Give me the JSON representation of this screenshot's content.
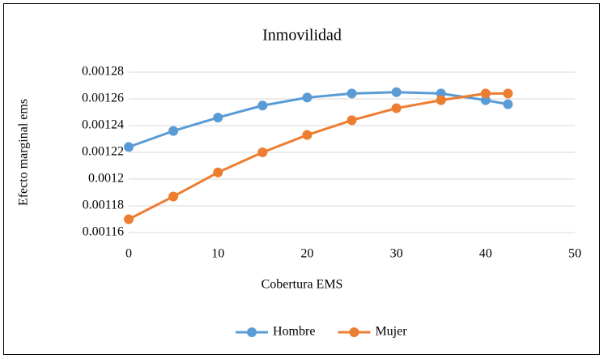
{
  "chart_data": {
    "type": "line",
    "title": "Inmovilidad",
    "x_label": "Cobertura EMS",
    "y_label": "Efecto marginal ems",
    "x": [
      0,
      5,
      10,
      15,
      20,
      25,
      30,
      35,
      40,
      42.5
    ],
    "series": [
      {
        "name": "Hombre",
        "color": "#5b9bd5",
        "values": [
          0.001224,
          0.001236,
          0.001246,
          0.001255,
          0.001261,
          0.001264,
          0.001265,
          0.001264,
          0.001259,
          0.001256
        ]
      },
      {
        "name": "Mujer",
        "color": "#ed7d31",
        "values": [
          0.00117,
          0.001187,
          0.001205,
          0.00122,
          0.001233,
          0.001244,
          0.001253,
          0.001259,
          0.001264,
          0.001264
        ]
      }
    ],
    "xlim": [
      0,
      50
    ],
    "xticks": [
      0,
      10,
      20,
      30,
      40,
      50
    ],
    "ylim": [
      0.00116,
      0.00128
    ],
    "yticks": [
      0.00116,
      0.00118,
      0.0012,
      0.00122,
      0.00124,
      0.00126,
      0.00128
    ],
    "grid": true,
    "legend": "bottom"
  }
}
